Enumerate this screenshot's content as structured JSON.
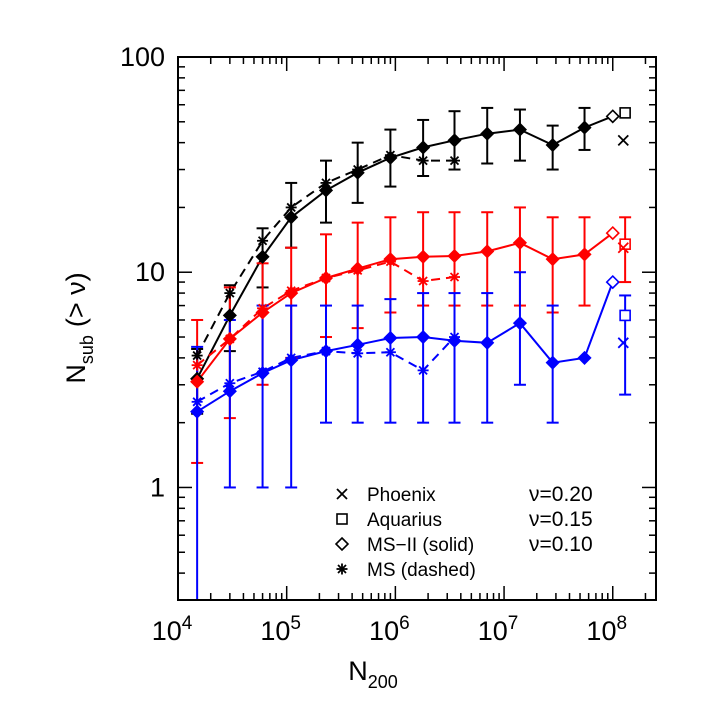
{
  "chart_data": {
    "type": "line",
    "xlabel": "N",
    "xlabel_sub": "200",
    "ylabel_main": "N",
    "ylabel_sub": "sub",
    "ylabel_rest": "(> ν)",
    "xscale": "log",
    "yscale": "log",
    "xlim": [
      10000,
      250000000
    ],
    "ylim": [
      0.3,
      100
    ],
    "x_ticks": [
      {
        "value": 10000,
        "base": "10",
        "exp": "4"
      },
      {
        "value": 100000,
        "base": "10",
        "exp": "5"
      },
      {
        "value": 1000000,
        "base": "10",
        "exp": "6"
      },
      {
        "value": 10000000,
        "base": "10",
        "exp": "7"
      },
      {
        "value": 100000000,
        "base": "10",
        "exp": "8"
      }
    ],
    "y_ticks": [
      {
        "value": 1,
        "label": "1"
      },
      {
        "value": 10,
        "label": "10"
      },
      {
        "value": 100,
        "label": "100"
      }
    ],
    "legend": {
      "placement": "bottom-right",
      "markers": [
        {
          "marker": "x",
          "label": "Phoenix"
        },
        {
          "marker": "square",
          "label": "Aquarius"
        },
        {
          "marker": "diamond",
          "label": "MS−II (solid)"
        },
        {
          "marker": "asterisk",
          "label": "MS (dashed)"
        }
      ],
      "thresholds": [
        {
          "text": "ν=0.20",
          "color": "#0000ff"
        },
        {
          "text": "ν=0.15",
          "color": "#ff0000"
        },
        {
          "text": "ν=0.10",
          "color": "#000000"
        }
      ]
    },
    "series": [
      {
        "group": "nu=0.10",
        "source": "MS-II",
        "color": "#000000",
        "line": "solid",
        "marker": "diamond",
        "x": [
          15000,
          30000,
          60000,
          110000,
          230000,
          450000,
          900000,
          1800000,
          3500000,
          7000000,
          14000000,
          28000000,
          55000000,
          100000000
        ],
        "y": [
          3.2,
          6.3,
          11.8,
          18,
          24,
          29,
          34,
          38,
          41,
          44,
          46,
          39,
          47,
          53
        ],
        "err_lo": [
          2.2,
          4.3,
          8.5,
          13,
          17,
          21,
          25,
          28,
          30,
          32,
          33,
          30,
          37,
          null
        ],
        "err_hi": [
          4.4,
          8.7,
          16,
          26,
          33,
          40,
          46,
          51,
          56,
          58,
          57,
          48,
          58,
          null
        ]
      },
      {
        "group": "nu=0.10",
        "source": "MS",
        "color": "#000000",
        "line": "dashed",
        "marker": "asterisk",
        "x": [
          15000,
          30000,
          60000,
          110000,
          230000,
          450000,
          900000,
          1800000,
          3500000
        ],
        "y": [
          4.1,
          8,
          14,
          20,
          26,
          30,
          35,
          33,
          33
        ]
      },
      {
        "group": "nu=0.15",
        "source": "MS-II",
        "color": "#ff0000",
        "line": "solid",
        "marker": "diamond",
        "x": [
          15000,
          30000,
          60000,
          110000,
          230000,
          450000,
          900000,
          1800000,
          3500000,
          7000000,
          14000000,
          28000000,
          55000000,
          100000000
        ],
        "y": [
          3.1,
          4.9,
          6.5,
          8,
          9.4,
          10.4,
          11.5,
          11.8,
          11.9,
          12.5,
          13.7,
          11.5,
          12.1,
          15.2
        ],
        "err_lo": [
          1.3,
          2.1,
          3,
          4,
          5,
          5.5,
          6.5,
          7,
          7,
          7,
          7,
          6.5,
          7,
          null
        ],
        "err_hi": [
          6,
          8.5,
          11,
          13,
          15,
          17,
          18,
          19,
          19,
          19,
          20,
          18,
          18,
          null
        ]
      },
      {
        "group": "nu=0.15",
        "source": "MS",
        "color": "#ff0000",
        "line": "dashed",
        "marker": "asterisk",
        "x": [
          15000,
          30000,
          60000,
          110000,
          230000,
          450000,
          900000,
          1800000,
          3500000
        ],
        "y": [
          3.7,
          4.9,
          6.8,
          8.2,
          9.4,
          10.2,
          11.2,
          9.1,
          9.5
        ]
      },
      {
        "group": "nu=0.20",
        "source": "MS-II",
        "color": "#0000ff",
        "line": "solid",
        "marker": "diamond",
        "x": [
          15000,
          30000,
          60000,
          110000,
          230000,
          450000,
          900000,
          1800000,
          3500000,
          7000000,
          14000000,
          28000000,
          55000000,
          100000000
        ],
        "y": [
          2.25,
          2.8,
          3.4,
          3.9,
          4.3,
          4.6,
          4.95,
          5,
          4.8,
          4.7,
          5.8,
          3.8,
          4,
          9
        ],
        "err_lo": [
          0.3,
          1,
          1,
          1,
          2,
          2,
          2,
          2,
          2,
          2,
          3,
          2,
          null,
          null
        ],
        "err_hi": [
          4.5,
          6,
          7,
          7,
          7,
          7,
          7.5,
          8,
          8,
          8,
          10,
          7,
          null,
          null
        ]
      },
      {
        "group": "nu=0.20",
        "source": "MS",
        "color": "#0000ff",
        "line": "dashed",
        "marker": "asterisk",
        "x": [
          15000,
          30000,
          60000,
          110000,
          230000,
          450000,
          900000,
          1800000,
          3500000
        ],
        "y": [
          2.5,
          3.05,
          3.45,
          4,
          4.3,
          4.2,
          4.25,
          3.5,
          5
        ]
      }
    ],
    "aquarius": [
      {
        "color": "#000000",
        "x": 130000000,
        "y": 55
      },
      {
        "color": "#ff0000",
        "x": 130000000,
        "y": 13.5,
        "err_lo": 9,
        "err_hi": 18
      },
      {
        "color": "#0000ff",
        "x": 130000000,
        "y": 6.3,
        "err_lo": 2.7,
        "err_hi": 7.8
      }
    ],
    "phoenix": [
      {
        "color": "#000000",
        "x": 125000000,
        "y": 41
      },
      {
        "color": "#ff0000",
        "x": 125000000,
        "y": 13
      },
      {
        "color": "#0000ff",
        "x": 125000000,
        "y": 4.7
      }
    ]
  }
}
